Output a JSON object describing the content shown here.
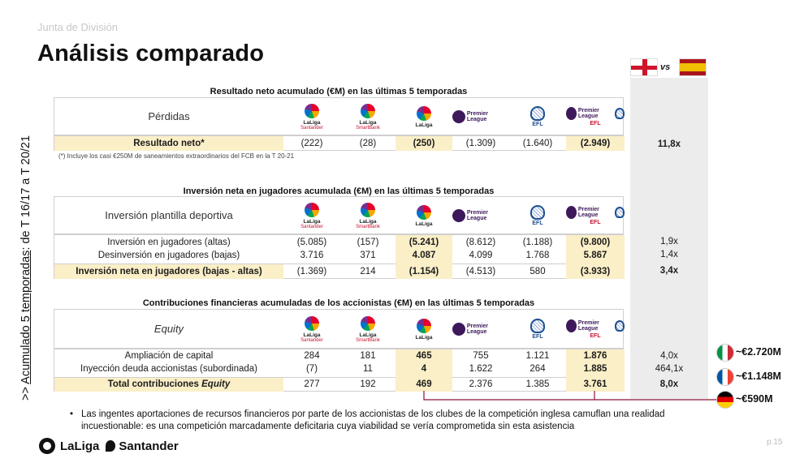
{
  "header": {
    "kicker": "Junta de División",
    "title": "Análisis comparado"
  },
  "side_label": {
    "underlined": "Acumulado 5 temporadas",
    "prefix": ">> ",
    "suffix": ": de T 16/17 a T 20/21"
  },
  "comparison": {
    "vs": "vs",
    "flag_left": "england-flag-icon",
    "flag_right": "spain-flag-icon"
  },
  "logos": [
    {
      "icon": "laliga-santander-logo",
      "name": "LaLiga",
      "sub": "Santander"
    },
    {
      "icon": "laliga-smartbank-logo",
      "name": "LaLiga",
      "sub": "SmartBank"
    },
    {
      "icon": "laliga-logo",
      "name": "LaLiga",
      "sub": ""
    },
    {
      "icon": "premier-league-logo",
      "name": "Premier League",
      "sub": ""
    },
    {
      "icon": "efl-logo",
      "name": "EFL",
      "sub": ""
    },
    {
      "icon": "premier-league-efl-logo",
      "name": "Premier League",
      "sub": "EFL"
    }
  ],
  "section1": {
    "title": "Resultado neto acumulado (€M) en las últimas 5 temporadas",
    "header_label": "Pérdidas",
    "rows": [
      {
        "label": "Resultado neto*",
        "values": [
          "(222)",
          "(28)",
          "(250)",
          "(1.309)",
          "(1.640)",
          "(2.949)"
        ],
        "ratio": "11,8x"
      }
    ],
    "note": "(*) Incluye los casi €250M de saneamientos extraordinarios del FCB en la T 20-21"
  },
  "section2": {
    "title": "Inversión neta en jugadores acumulada (€M) en las últimas 5 temporadas",
    "header_label": "Inversión plantilla deportiva",
    "rows": [
      {
        "label": "Inversión en jugadores (altas)",
        "values": [
          "(5.085)",
          "(157)",
          "(5.241)",
          "(8.612)",
          "(1.188)",
          "(9.800)"
        ],
        "ratio": "1,9x"
      },
      {
        "label": "Desinversión en jugadores (bajas)",
        "values": [
          "3.716",
          "371",
          "4.087",
          "4.099",
          "1.768",
          "5.867"
        ],
        "ratio": "1,4x"
      },
      {
        "label": "Inversión neta en jugadores (bajas - altas)",
        "values": [
          "(1.369)",
          "214",
          "(1.154)",
          "(4.513)",
          "580",
          "(3.933)"
        ],
        "ratio": "3,4x"
      }
    ]
  },
  "section3": {
    "title": "Contribuciones financieras acumuladas de los accionistas (€M) en las últimas 5 temporadas",
    "header_label": "Equity",
    "rows": [
      {
        "label": "Ampliación de capital",
        "values": [
          "284",
          "181",
          "465",
          "755",
          "1.121",
          "1.876"
        ],
        "ratio": "4,0x"
      },
      {
        "label": "Inyección deuda accionistas (subordinada)",
        "values": [
          "(7)",
          "11",
          "4",
          "1.622",
          "264",
          "1.885"
        ],
        "ratio": "464,1x"
      },
      {
        "label_prefix": "Total contribuciones ",
        "label_em": "Equity",
        "values": [
          "277",
          "192",
          "469",
          "2.376",
          "1.385",
          "3.761"
        ],
        "ratio": "8,0x"
      }
    ]
  },
  "countries": [
    {
      "icon": "italy-flag-icon",
      "amount": "~€2.720M"
    },
    {
      "icon": "france-flag-icon",
      "amount": "~€1.148M"
    },
    {
      "icon": "germany-flag-icon",
      "amount": "~€590M"
    }
  ],
  "bullet": "Las ingentes aportaciones de recursos financieros por parte de los accionistas de los clubes de la competición inglesa camuflan una realidad incuestionable: es una competición marcadamente deficitaria cuya viabilidad se vería comprometida sin esta asistencia",
  "footer": {
    "brand_a": "LaLiga",
    "brand_b": "Santander",
    "page": "p.15"
  }
}
